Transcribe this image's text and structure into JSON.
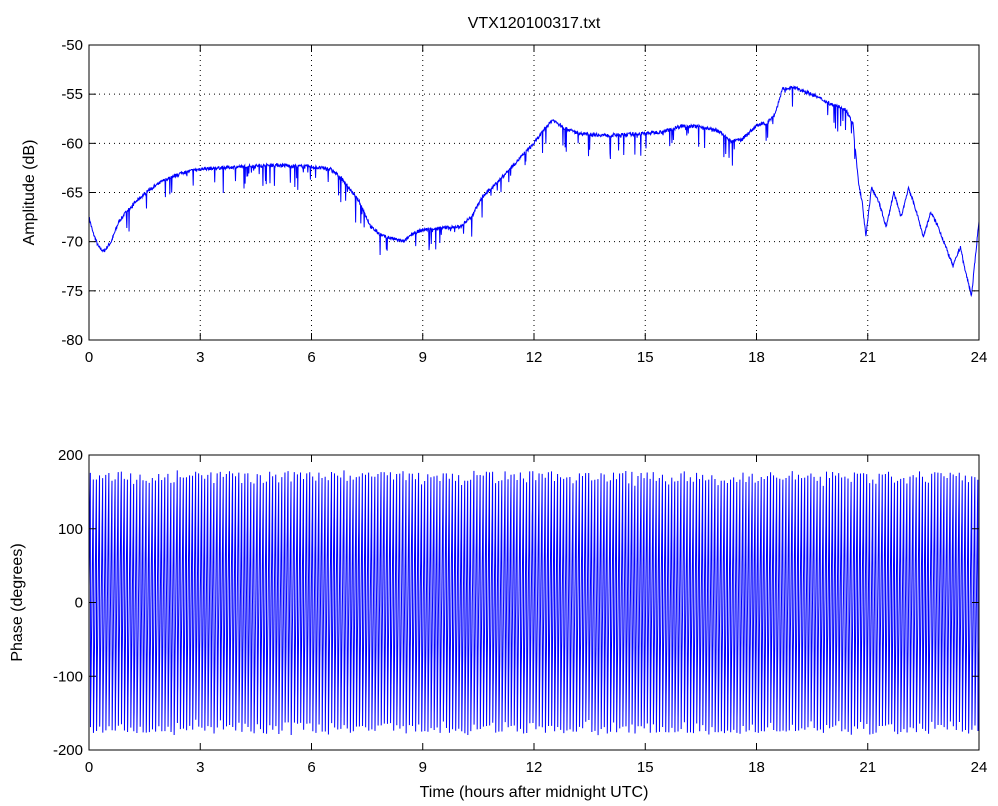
{
  "figure": {
    "title": "VTX120100317.txt"
  },
  "chart_data": [
    {
      "type": "line",
      "title": "VTX120100317.txt",
      "xlabel": "",
      "ylabel": "Amplitude (dB)",
      "xlim": [
        0,
        24
      ],
      "ylim": [
        -80,
        -50
      ],
      "xticks": [
        0,
        3,
        6,
        9,
        12,
        15,
        18,
        21,
        24
      ],
      "yticks": [
        -50,
        -55,
        -60,
        -65,
        -70,
        -75,
        -80
      ],
      "grid": true,
      "color": "#0000ff",
      "series": [
        {
          "x": [
            0,
            0.1,
            0.25,
            0.4,
            0.6,
            0.8,
            1.0,
            1.3,
            1.6,
            2.0,
            2.5,
            3.0,
            3.5,
            4.0,
            4.5,
            5.0,
            5.5,
            6.0,
            6.5,
            6.8,
            7.0,
            7.3,
            7.6,
            7.9,
            8.2,
            8.5,
            8.7,
            9.0,
            9.5,
            10.0,
            10.3,
            10.6,
            11.0,
            11.5,
            12.0,
            12.3,
            12.5,
            12.8,
            13.2,
            13.6,
            14.0,
            14.5,
            15.0,
            15.5,
            16.0,
            16.5,
            17.0,
            17.3,
            17.6,
            18.0,
            18.3,
            18.5,
            18.7,
            19.0,
            19.3,
            19.6,
            20.0,
            20.4,
            20.6,
            20.75,
            20.85,
            20.95,
            21.1,
            21.3,
            21.5,
            21.7,
            21.9,
            22.1,
            22.3,
            22.5,
            22.7,
            22.9,
            23.1,
            23.3,
            23.5,
            23.6,
            23.8,
            24.0
          ],
          "y": [
            -67.5,
            -69,
            -70.5,
            -71,
            -70,
            -68,
            -67,
            -65.8,
            -64.8,
            -63.8,
            -63,
            -62.6,
            -62.5,
            -62.4,
            -62.3,
            -62.2,
            -62.3,
            -62.4,
            -62.6,
            -63.5,
            -64.5,
            -66,
            -68.5,
            -69.4,
            -69.7,
            -70,
            -69.2,
            -68.8,
            -68.6,
            -68.5,
            -67.5,
            -65.5,
            -64,
            -62,
            -60,
            -58.5,
            -57.6,
            -58.4,
            -59,
            -59.1,
            -59.2,
            -59.1,
            -59,
            -58.8,
            -58.2,
            -58.3,
            -58.8,
            -59.8,
            -59.6,
            -58.2,
            -57.9,
            -57,
            -54.5,
            -54.3,
            -54.7,
            -55.2,
            -56,
            -56.5,
            -58,
            -64,
            -66,
            -69.5,
            -64.5,
            -66,
            -68.5,
            -65,
            -67.5,
            -64.5,
            -66.8,
            -69.5,
            -67,
            -68.5,
            -70.5,
            -72.5,
            -70.5,
            -72.5,
            -75.5,
            -67.8
          ]
        }
      ]
    },
    {
      "type": "line",
      "title": "",
      "xlabel": "Time (hours after midnight UTC)",
      "ylabel": "Phase (degrees)",
      "xlim": [
        0,
        24
      ],
      "ylim": [
        -200,
        200
      ],
      "xticks": [
        0,
        3,
        6,
        9,
        12,
        15,
        18,
        21,
        24
      ],
      "yticks": [
        200,
        100,
        0,
        -100,
        -200
      ],
      "grid": false,
      "color": "#0000ff",
      "phase_wrap_range": [
        -180,
        180
      ],
      "approx_cycles_per_hour": 12
    }
  ]
}
